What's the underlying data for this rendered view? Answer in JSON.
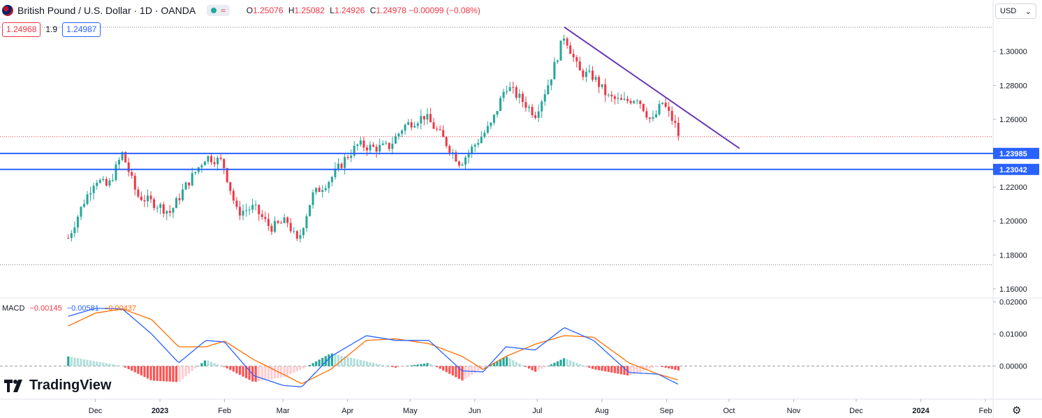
{
  "header": {
    "symbol": "British Pound / U.S. Dollar · 1D · OANDA",
    "wave_icon": "≈",
    "ohlc": {
      "o_label": "O",
      "o": "1.25076",
      "h_label": "H",
      "h": "1.25082",
      "l_label": "L",
      "l": "1.24926",
      "c_label": "C",
      "c": "1.24978",
      "change": "−0.00099 (−0.08%)"
    }
  },
  "quote": {
    "sell": "1.24968",
    "spread": "1.9",
    "buy": "1.24987"
  },
  "currency_selector": {
    "value": "USD"
  },
  "macd_legend": {
    "label": "MACD",
    "hist": "−0.00145",
    "macd": "−0.00581",
    "signal": "−0.00437"
  },
  "logo": {
    "text": "TradingView"
  },
  "colors": {
    "up": "#26a69a",
    "down": "#f23645",
    "trend": "#673ab7",
    "hline": "#2962ff",
    "macd": "#2962ff",
    "signal": "#ff6d00"
  },
  "chart_data": {
    "type": "candlestick",
    "x_tick_labels": [
      "Dec",
      "2023",
      "Feb",
      "Mar",
      "Apr",
      "May",
      "Jun",
      "Jul",
      "Aug",
      "Sep",
      "Oct",
      "Nov",
      "Dec",
      "2024",
      "Feb"
    ],
    "price_axis": {
      "ticks": [
        "1.30000",
        "1.28000",
        "1.26000",
        "1.22000",
        "1.20000",
        "1.18000",
        "1.16000"
      ],
      "range": [
        1.155,
        1.318
      ]
    },
    "horizontal_lines": [
      {
        "label": "1.23985",
        "value": 1.23985
      },
      {
        "label": "1.23042",
        "value": 1.23042
      }
    ],
    "dotted_lines": [
      1.3143,
      1.2498,
      1.1742
    ],
    "trendline": {
      "from": {
        "date": "2023-07-14",
        "price": 1.3143
      },
      "to": {
        "date": "2023-10-06",
        "price": 1.2428
      }
    },
    "price_series_close": [
      {
        "date": "2022-11-18",
        "close": 1.19
      },
      {
        "date": "2022-11-25",
        "close": 1.21
      },
      {
        "date": "2022-12-01",
        "close": 1.225
      },
      {
        "date": "2022-12-07",
        "close": 1.22
      },
      {
        "date": "2022-12-14",
        "close": 1.24
      },
      {
        "date": "2022-12-21",
        "close": 1.215
      },
      {
        "date": "2022-12-30",
        "close": 1.21
      },
      {
        "date": "2023-01-06",
        "close": 1.205
      },
      {
        "date": "2023-01-13",
        "close": 1.22
      },
      {
        "date": "2023-01-23",
        "close": 1.238
      },
      {
        "date": "2023-01-31",
        "close": 1.235
      },
      {
        "date": "2023-02-07",
        "close": 1.205
      },
      {
        "date": "2023-02-15",
        "close": 1.208
      },
      {
        "date": "2023-02-23",
        "close": 1.196
      },
      {
        "date": "2023-03-03",
        "close": 1.2
      },
      {
        "date": "2023-03-08",
        "close": 1.187
      },
      {
        "date": "2023-03-15",
        "close": 1.215
      },
      {
        "date": "2023-03-24",
        "close": 1.225
      },
      {
        "date": "2023-03-31",
        "close": 1.237
      },
      {
        "date": "2023-04-06",
        "close": 1.245
      },
      {
        "date": "2023-04-14",
        "close": 1.243
      },
      {
        "date": "2023-04-21",
        "close": 1.244
      },
      {
        "date": "2023-04-28",
        "close": 1.256
      },
      {
        "date": "2023-05-08",
        "close": 1.262
      },
      {
        "date": "2023-05-16",
        "close": 1.25
      },
      {
        "date": "2023-05-25",
        "close": 1.234
      },
      {
        "date": "2023-06-01",
        "close": 1.245
      },
      {
        "date": "2023-06-09",
        "close": 1.257
      },
      {
        "date": "2023-06-16",
        "close": 1.28
      },
      {
        "date": "2023-06-23",
        "close": 1.272
      },
      {
        "date": "2023-06-30",
        "close": 1.263
      },
      {
        "date": "2023-07-07",
        "close": 1.283
      },
      {
        "date": "2023-07-14",
        "close": 1.31
      },
      {
        "date": "2023-07-21",
        "close": 1.288
      },
      {
        "date": "2023-07-28",
        "close": 1.285
      },
      {
        "date": "2023-08-04",
        "close": 1.273
      },
      {
        "date": "2023-08-11",
        "close": 1.27
      },
      {
        "date": "2023-08-18",
        "close": 1.273
      },
      {
        "date": "2023-08-25",
        "close": 1.258
      },
      {
        "date": "2023-08-30",
        "close": 1.27
      },
      {
        "date": "2023-09-05",
        "close": 1.257
      },
      {
        "date": "2023-09-07",
        "close": 1.2498
      }
    ],
    "macd_axis": {
      "ticks": [
        "0.02000",
        "0.01000",
        "0.00000"
      ],
      "range": [
        -0.0103,
        0.021
      ]
    },
    "macd_series": [
      {
        "date": "2022-11-18",
        "macd": 0.0155,
        "signal": 0.0125
      },
      {
        "date": "2022-12-01",
        "macd": 0.018,
        "signal": 0.0165
      },
      {
        "date": "2022-12-14",
        "macd": 0.0178,
        "signal": 0.0178
      },
      {
        "date": "2022-12-28",
        "macd": 0.01,
        "signal": 0.0145
      },
      {
        "date": "2023-01-10",
        "macd": 0.001,
        "signal": 0.006
      },
      {
        "date": "2023-01-23",
        "macd": 0.008,
        "signal": 0.006
      },
      {
        "date": "2023-02-01",
        "macd": 0.0075,
        "signal": 0.0078
      },
      {
        "date": "2023-02-15",
        "macd": -0.003,
        "signal": 0.002
      },
      {
        "date": "2023-03-01",
        "macd": -0.006,
        "signal": -0.0025
      },
      {
        "date": "2023-03-10",
        "macd": -0.0065,
        "signal": -0.0055
      },
      {
        "date": "2023-03-24",
        "macd": 0.003,
        "signal": -0.001
      },
      {
        "date": "2023-04-10",
        "macd": 0.0095,
        "signal": 0.008
      },
      {
        "date": "2023-04-24",
        "macd": 0.008,
        "signal": 0.0085
      },
      {
        "date": "2023-05-10",
        "macd": 0.008,
        "signal": 0.007
      },
      {
        "date": "2023-05-26",
        "macd": -0.0015,
        "signal": 0.003
      },
      {
        "date": "2023-06-05",
        "macd": -0.0018,
        "signal": -0.001
      },
      {
        "date": "2023-06-16",
        "macd": 0.006,
        "signal": 0.003
      },
      {
        "date": "2023-06-30",
        "macd": 0.005,
        "signal": 0.0068
      },
      {
        "date": "2023-07-14",
        "macd": 0.012,
        "signal": 0.0095
      },
      {
        "date": "2023-07-28",
        "macd": 0.008,
        "signal": 0.009
      },
      {
        "date": "2023-08-14",
        "macd": -0.002,
        "signal": 0.001
      },
      {
        "date": "2023-08-28",
        "macd": -0.0025,
        "signal": -0.0025
      },
      {
        "date": "2023-09-07",
        "macd": -0.0058,
        "signal": -0.0044
      }
    ]
  }
}
